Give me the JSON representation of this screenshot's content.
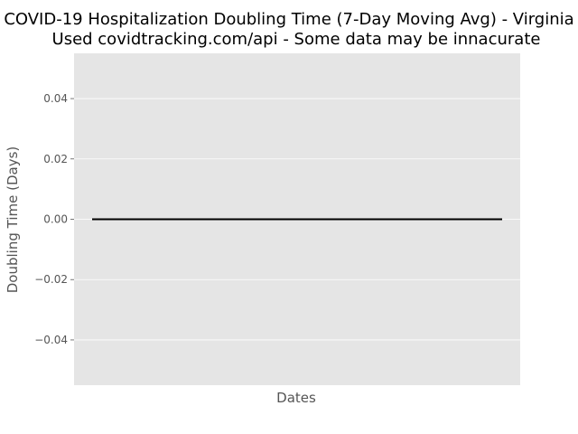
{
  "chart_data": {
    "type": "line",
    "title_line1": "COVID-19 Hospitalization Doubling Time (7-Day Moving Avg) - Virginia",
    "title_line2": "Used covidtracking.com/api - Some data may be innacurate",
    "xlabel": "Dates",
    "ylabel": "Doubling Time (Days)",
    "ylim": [
      -0.055,
      0.055
    ],
    "yticks": [
      0.04,
      0.02,
      0.0,
      -0.02,
      -0.04
    ],
    "ytick_labels": [
      "0.04",
      "0.02",
      "0.00",
      "−0.02",
      "−0.04"
    ],
    "grid": true,
    "series": [
      {
        "values": [
          0,
          0
        ],
        "color": "#000000"
      }
    ],
    "colors": {
      "plot_bg": "#e5e5e5",
      "grid": "#ffffff",
      "line": "#000000"
    }
  }
}
